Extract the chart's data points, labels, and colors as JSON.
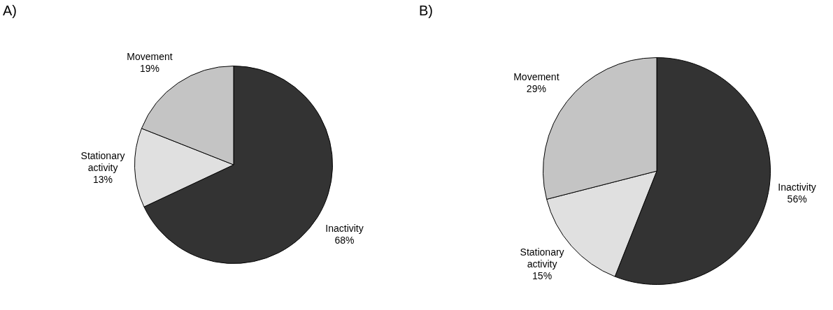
{
  "chart_data": [
    {
      "type": "pie",
      "title": "A)",
      "categories": [
        "Inactivity",
        "Stationary activity",
        "Movement"
      ],
      "values": [
        68,
        13,
        19
      ],
      "colors": [
        "#333333",
        "#e0e0e0",
        "#c4c4c4"
      ],
      "value_labels": [
        "68%",
        "13%",
        "19%"
      ],
      "legend": false
    },
    {
      "type": "pie",
      "title": "B)",
      "categories": [
        "Inactivity",
        "Stationary activity",
        "Movement"
      ],
      "values": [
        56,
        15,
        29
      ],
      "colors": [
        "#333333",
        "#e0e0e0",
        "#c4c4c4"
      ],
      "value_labels": [
        "56%",
        "15%",
        "29%"
      ],
      "legend": false
    }
  ]
}
